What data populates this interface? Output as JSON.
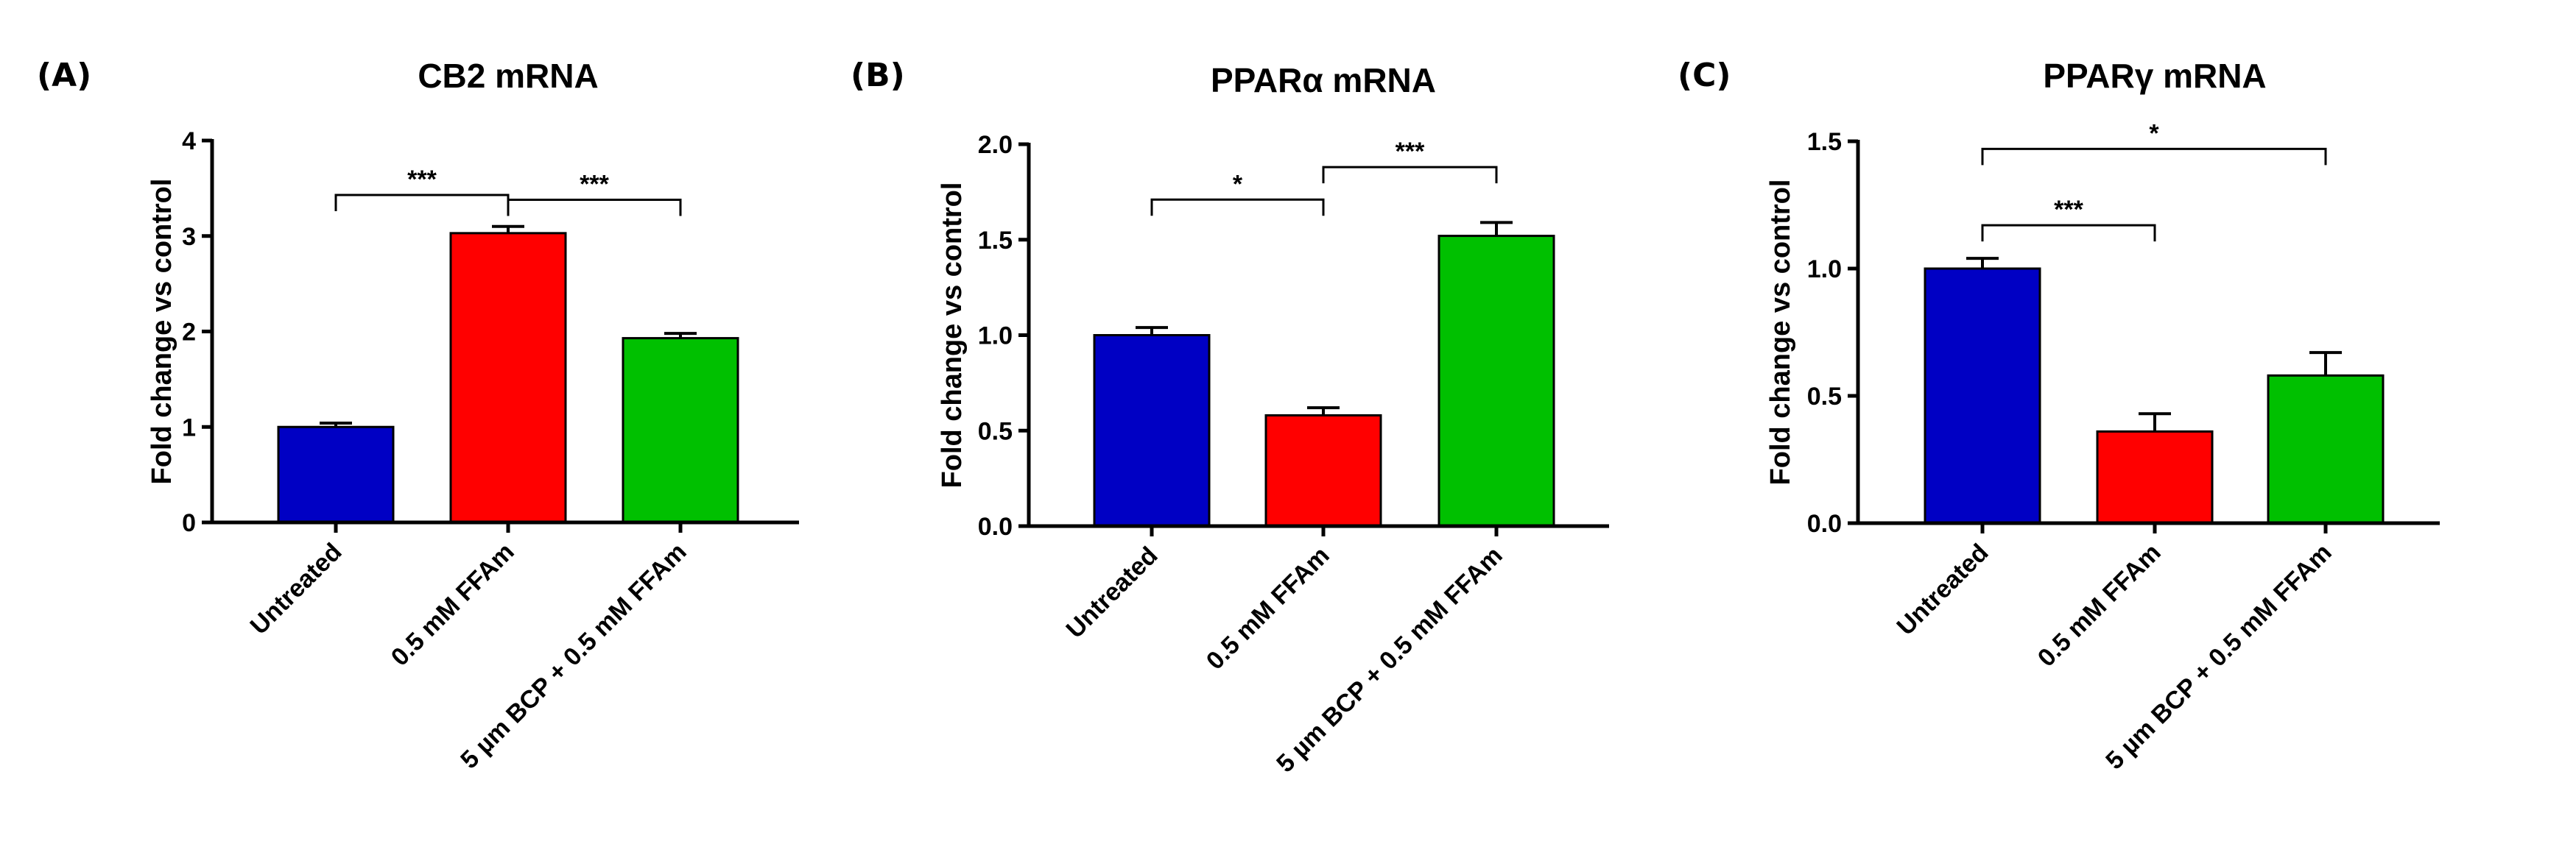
{
  "colors": {
    "Untreated": "#0000c4",
    "0.5 mM FFAm": "#ff0000",
    "5 µm BCP + 0.5 mM FFAm": "#00c000",
    "axis": "#000000"
  },
  "chart_data": [
    {
      "panel": "(A)",
      "type": "bar",
      "title": "CB2 mRNA",
      "ylabel": "Fold change vs control",
      "categories": [
        "Untreated",
        "0.5 mM FFAm",
        "5 µm BCP + 0.5 mM FFAm"
      ],
      "values": [
        1.0,
        3.03,
        1.93
      ],
      "errors": [
        0.04,
        0.07,
        0.05
      ],
      "ylim": [
        0,
        4
      ],
      "yticks": [
        0,
        1,
        2,
        3,
        4
      ],
      "ytick_labels": [
        "0",
        "1",
        "2",
        "3",
        "4"
      ],
      "grid": false,
      "significance": [
        {
          "from": 0,
          "to": 1,
          "label": "***",
          "level": 3.43
        },
        {
          "from": 1,
          "to": 2,
          "label": "***",
          "level": 3.38
        }
      ]
    },
    {
      "panel": "(B)",
      "type": "bar",
      "title": "PPARα mRNA",
      "ylabel": "Fold change vs control",
      "categories": [
        "Untreated",
        "0.5 mM FFAm",
        "5 µm BCP + 0.5 mM FFAm"
      ],
      "values": [
        1.0,
        0.58,
        1.52
      ],
      "errors": [
        0.04,
        0.04,
        0.07
      ],
      "ylim": [
        0,
        2.0
      ],
      "yticks": [
        0,
        0.5,
        1.0,
        1.5,
        2.0
      ],
      "ytick_labels": [
        "0.0",
        "0.5",
        "1.0",
        "1.5",
        "2.0"
      ],
      "grid": false,
      "significance": [
        {
          "from": 0,
          "to": 1,
          "label": "*",
          "level": 1.71
        },
        {
          "from": 1,
          "to": 2,
          "label": "***",
          "level": 1.88
        }
      ]
    },
    {
      "panel": "(C)",
      "type": "bar",
      "title": "PPARγ mRNA",
      "ylabel": "Fold change vs control",
      "categories": [
        "Untreated",
        "0.5 mM FFAm",
        "5 µm BCP + 0.5 mM FFAm"
      ],
      "values": [
        1.0,
        0.36,
        0.58
      ],
      "errors": [
        0.04,
        0.07,
        0.09
      ],
      "ylim": [
        0,
        1.5
      ],
      "yticks": [
        0,
        0.5,
        1.0,
        1.5
      ],
      "ytick_labels": [
        "0.0",
        "0.5",
        "1.0",
        "1.5"
      ],
      "grid": false,
      "significance": [
        {
          "from": 0,
          "to": 1,
          "label": "***",
          "level": 1.17
        },
        {
          "from": 0,
          "to": 2,
          "label": "*",
          "level": 1.47
        }
      ]
    }
  ]
}
